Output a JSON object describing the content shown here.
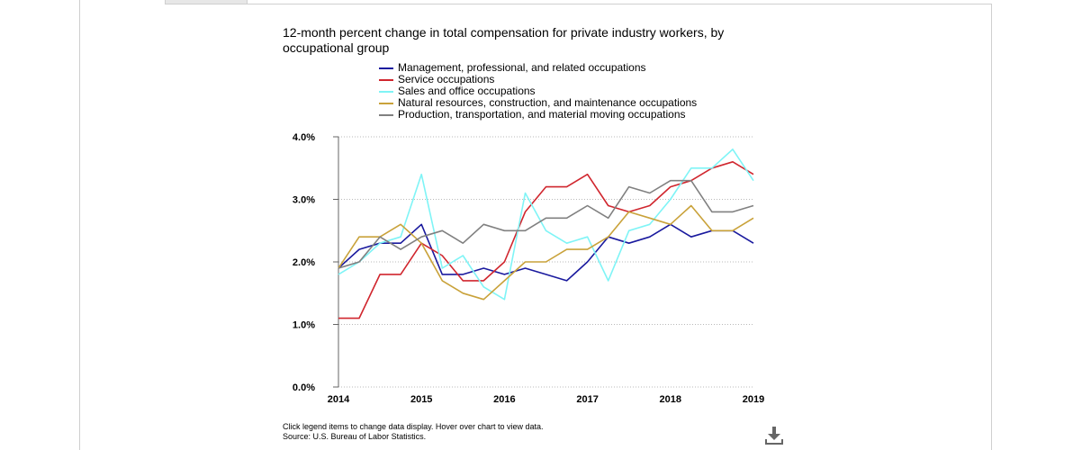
{
  "title": "12-month percent change in total compensation for private industry workers, by occupational group",
  "footer": {
    "note": "Click legend items to change data display. Hover over chart to view data.",
    "source": "Source: U.S. Bureau of Labor Statistics."
  },
  "download_icon": "download-icon",
  "chart_data": {
    "type": "line",
    "title": "12-month percent change in total compensation for private industry workers, by occupational group",
    "xlabel": "",
    "ylabel": "",
    "x": [
      2014.0,
      2014.25,
      2014.5,
      2014.75,
      2015.0,
      2015.25,
      2015.5,
      2015.75,
      2016.0,
      2016.25,
      2016.5,
      2016.75,
      2017.0,
      2017.25,
      2017.5,
      2017.75,
      2018.0,
      2018.25,
      2018.5,
      2018.75,
      2019.0
    ],
    "xlim": [
      2014,
      2019
    ],
    "ylim": [
      0,
      4
    ],
    "x_ticks": [
      "2014",
      "2015",
      "2016",
      "2017",
      "2018",
      "2019"
    ],
    "y_ticks": [
      "0.0%",
      "1.0%",
      "2.0%",
      "3.0%",
      "4.0%"
    ],
    "grid": "horizontal dotted",
    "legend_position": "top",
    "series": [
      {
        "name": "Management, professional, and related occupations",
        "color": "#1a1a9e",
        "values": [
          1.9,
          2.2,
          2.3,
          2.3,
          2.6,
          1.8,
          1.8,
          1.9,
          1.8,
          1.9,
          1.8,
          1.7,
          2.0,
          2.4,
          2.3,
          2.4,
          2.6,
          2.4,
          2.5,
          2.5,
          2.3
        ]
      },
      {
        "name": "Service occupations",
        "color": "#d0262e",
        "values": [
          1.1,
          1.1,
          1.8,
          1.8,
          2.3,
          2.1,
          1.7,
          1.7,
          2.0,
          2.8,
          3.2,
          3.2,
          3.4,
          2.9,
          2.8,
          2.9,
          3.2,
          3.3,
          3.5,
          3.6,
          3.4
        ]
      },
      {
        "name": "Sales and office occupations",
        "color": "#7ff4f6",
        "values": [
          1.8,
          2.0,
          2.3,
          2.4,
          3.4,
          1.9,
          2.1,
          1.6,
          1.4,
          3.1,
          2.5,
          2.3,
          2.4,
          1.7,
          2.5,
          2.6,
          3.0,
          3.5,
          3.5,
          3.8,
          3.3
        ]
      },
      {
        "name": "Natural resources, construction, and maintenance occupations",
        "color": "#c9a23a",
        "values": [
          1.9,
          2.4,
          2.4,
          2.6,
          2.3,
          1.7,
          1.5,
          1.4,
          1.7,
          2.0,
          2.0,
          2.2,
          2.2,
          2.4,
          2.8,
          2.7,
          2.6,
          2.9,
          2.5,
          2.5,
          2.7
        ]
      },
      {
        "name": "Production, transportation, and material moving occupations",
        "color": "#808080",
        "values": [
          1.9,
          2.0,
          2.4,
          2.2,
          2.4,
          2.5,
          2.3,
          2.6,
          2.5,
          2.5,
          2.7,
          2.7,
          2.9,
          2.7,
          3.2,
          3.1,
          3.3,
          3.3,
          2.8,
          2.8,
          2.9
        ]
      }
    ]
  }
}
